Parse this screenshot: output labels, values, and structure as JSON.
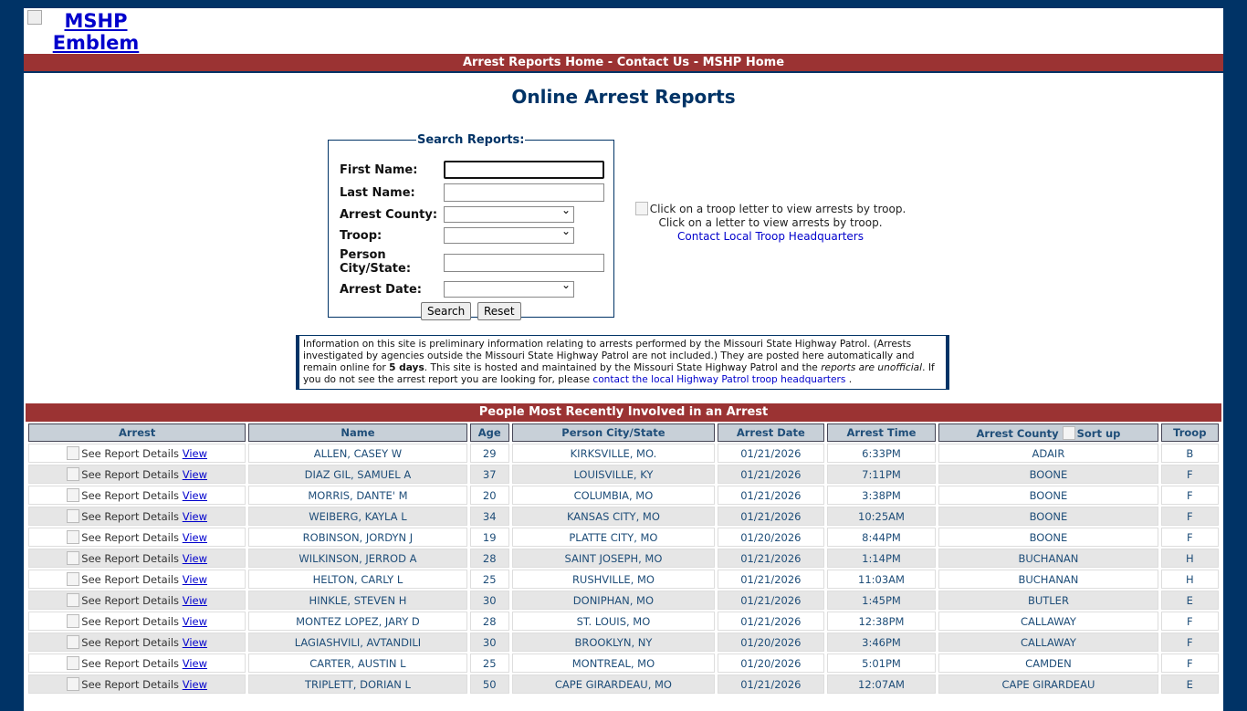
{
  "logo_alt": "MSHP Emblem",
  "nav": [
    "Arrest Reports Home",
    "Contact Us",
    "MSHP Home"
  ],
  "nav_sep": " - ",
  "title": "Online Arrest Reports",
  "search": {
    "legend": "Search Reports:",
    "first_name": "First Name:",
    "last_name": "Last Name:",
    "county": "Arrest County:",
    "troop": "Troop:",
    "city": "Person City/State:",
    "date": "Arrest Date:",
    "search_btn": "Search",
    "reset_btn": "Reset"
  },
  "troop_map": {
    "img_alt": "Click on a troop letter to view arrests by troop.",
    "text": "Click on a letter to view arrests by troop.",
    "link": "Contact Local Troop Headquarters"
  },
  "info": {
    "p1": "Information on this site is preliminary information relating to arrests performed by the Missouri State Highway Patrol. (Arrests investigated by agencies outside the Missouri State Highway Patrol are not included.) They are posted here automatically and remain online for ",
    "bold": "5 days",
    "p2": ". This site is hosted and maintained by the Missouri State Highway Patrol and the ",
    "italic": "reports are unofficial",
    "p3": ". If you do not see the arrest report you are looking for, please ",
    "link": "contact the local Highway Patrol troop headquarters",
    "p4": " ."
  },
  "table": {
    "title": "People Most Recently Involved in an Arrest",
    "headers": [
      "Arrest",
      "Name",
      "Age",
      "Person City/State",
      "Arrest Date",
      "Arrest Time",
      "Arrest County",
      "Troop"
    ],
    "sort_alt": "Sort up",
    "details_alt": "See Report Details",
    "view": "View",
    "rows": [
      [
        "ALLEN, CASEY W",
        "29",
        "KIRKSVILLE, MO.",
        "01/21/2026",
        "6:33PM",
        "ADAIR",
        "B"
      ],
      [
        "DIAZ GIL, SAMUEL A",
        "37",
        "LOUISVILLE, KY",
        "01/21/2026",
        "7:11PM",
        "BOONE",
        "F"
      ],
      [
        "MORRIS, DANTE' M",
        "20",
        "COLUMBIA, MO",
        "01/21/2026",
        "3:38PM",
        "BOONE",
        "F"
      ],
      [
        "WEIBERG, KAYLA L",
        "34",
        "KANSAS CITY, MO",
        "01/21/2026",
        "10:25AM",
        "BOONE",
        "F"
      ],
      [
        "ROBINSON, JORDYN J",
        "19",
        "PLATTE CITY, MO",
        "01/20/2026",
        "8:44PM",
        "BOONE",
        "F"
      ],
      [
        "WILKINSON, JERROD A",
        "28",
        "SAINT JOSEPH, MO",
        "01/21/2026",
        "1:14PM",
        "BUCHANAN",
        "H"
      ],
      [
        "HELTON, CARLY L",
        "25",
        "RUSHVILLE, MO",
        "01/21/2026",
        "11:03AM",
        "BUCHANAN",
        "H"
      ],
      [
        "HINKLE, STEVEN H",
        "30",
        "DONIPHAN, MO",
        "01/21/2026",
        "1:45PM",
        "BUTLER",
        "E"
      ],
      [
        "MONTEZ LOPEZ, JARY D",
        "28",
        "ST. LOUIS, MO",
        "01/21/2026",
        "12:38PM",
        "CALLAWAY",
        "F"
      ],
      [
        "LAGIASHVILI, AVTANDILI",
        "30",
        "BROOKLYN, NY",
        "01/20/2026",
        "3:46PM",
        "CALLAWAY",
        "F"
      ],
      [
        "CARTER, AUSTIN L",
        "25",
        "MONTREAL, MO",
        "01/20/2026",
        "5:01PM",
        "CAMDEN",
        "F"
      ],
      [
        "TRIPLETT, DORIAN L",
        "50",
        "CAPE GIRARDEAU, MO",
        "01/21/2026",
        "12:07AM",
        "CAPE GIRARDEAU",
        "E"
      ]
    ]
  }
}
